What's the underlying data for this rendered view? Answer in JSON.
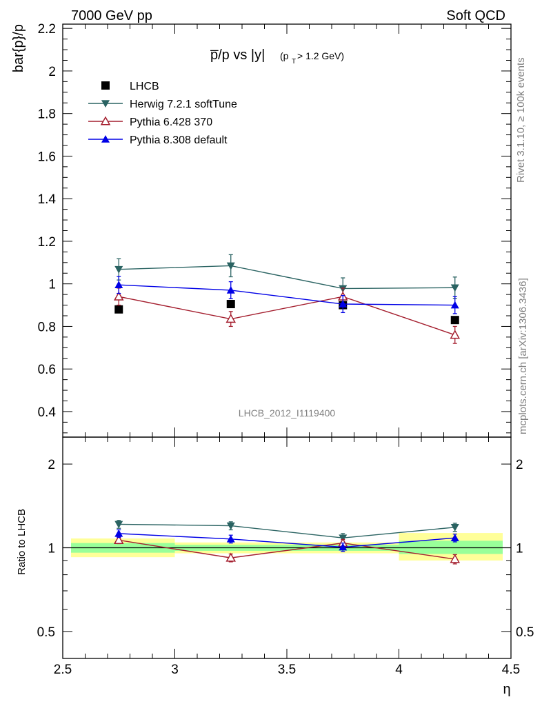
{
  "header": {
    "left": "7000 GeV pp",
    "right": "Soft QCD"
  },
  "side": {
    "rivet": "Rivet 3.1.10, ≥ 100k events",
    "mcplots": "mcplots.cern.ch [arXiv:1306.3436]"
  },
  "chart_data": [
    {
      "type": "scatter",
      "title_main": "p̅/p vs |y|",
      "title_sub": "(p",
      "title_sub_t": "T",
      "title_sub_end": " > 1.2 GeV)",
      "ylabel": "bar{p}/p",
      "xlabel": "η",
      "watermark": "LHCB_2012_I1119400",
      "xlim": [
        2.5,
        4.5
      ],
      "ylim": [
        0.28,
        2.22
      ],
      "y_ticks": [
        0.4,
        0.6,
        0.8,
        1,
        1.2,
        1.4,
        1.6,
        1.8,
        2,
        2.2
      ],
      "y_tick_labels": [
        "0.4",
        "0.6",
        "0.8",
        "1",
        "1.2",
        "1.4",
        "1.6",
        "1.8",
        "2",
        "2.2"
      ],
      "legend_position": "top-left",
      "series": [
        {
          "name": "LHCB",
          "color": "#000000",
          "marker": "square",
          "x": [
            2.75,
            3.25,
            3.75,
            4.25
          ],
          "y": [
            0.88,
            0.905,
            0.9,
            0.83
          ],
          "err": [
            0.01,
            0.01,
            0.01,
            0.01
          ],
          "line": false
        },
        {
          "name": "Herwig 7.2.1 softTune",
          "color": "#2a6362",
          "marker": "triangle-down",
          "x": [
            2.75,
            3.25,
            3.75,
            4.25
          ],
          "y": [
            1.068,
            1.085,
            0.978,
            0.982
          ],
          "err": [
            0.05,
            0.052,
            0.05,
            0.05
          ],
          "line": true
        },
        {
          "name": "Pythia 6.428 370",
          "color": "#a41e2e",
          "marker": "triangle-up-open",
          "x": [
            2.75,
            3.25,
            3.75,
            4.25
          ],
          "y": [
            0.94,
            0.835,
            0.94,
            0.76
          ],
          "err": [
            0.04,
            0.035,
            0.04,
            0.04
          ],
          "line": true
        },
        {
          "name": "Pythia 8.308 default",
          "color": "#0000e6",
          "marker": "triangle-up",
          "x": [
            2.75,
            3.25,
            3.75,
            4.25
          ],
          "y": [
            0.995,
            0.97,
            0.905,
            0.9
          ],
          "err": [
            0.04,
            0.04,
            0.04,
            0.04
          ],
          "line": true
        }
      ]
    },
    {
      "type": "scatter",
      "ylabel": "Ratio to LHCB",
      "ylog": true,
      "ylim": [
        0.4,
        2.5
      ],
      "x_ticks": [
        2.5,
        3,
        3.5,
        4,
        4.5
      ],
      "x_tick_labels": [
        "2.5",
        "3",
        "3.5",
        "4",
        "4.5"
      ],
      "y_ticks": [
        0.5,
        1,
        2
      ],
      "y_tick_labels": [
        "0.5",
        "1",
        "2"
      ],
      "bands": [
        {
          "x": [
            2.5,
            3.0
          ],
          "yellow": [
            0.925,
            1.08
          ],
          "green": [
            0.96,
            1.04
          ]
        },
        {
          "x": [
            3.0,
            3.5
          ],
          "yellow": [
            0.955,
            1.045
          ],
          "green": [
            0.975,
            1.025
          ]
        },
        {
          "x": [
            3.5,
            4.0
          ],
          "yellow": [
            0.955,
            1.045
          ],
          "green": [
            0.975,
            1.025
          ]
        },
        {
          "x": [
            4.0,
            4.5
          ],
          "yellow": [
            0.9,
            1.13
          ],
          "green": [
            0.95,
            1.06
          ]
        }
      ],
      "series": [
        {
          "name": "Herwig 7.2.1 softTune",
          "color": "#2a6362",
          "marker": "triangle-down",
          "x": [
            2.75,
            3.25,
            3.75,
            4.25
          ],
          "y": [
            1.215,
            1.2,
            1.085,
            1.185
          ],
          "err": [
            0.04,
            0.04,
            0.04,
            0.04
          ]
        },
        {
          "name": "Pythia 6.428 370",
          "color": "#a41e2e",
          "marker": "triangle-up-open",
          "x": [
            2.75,
            3.25,
            3.75,
            4.25
          ],
          "y": [
            1.065,
            0.92,
            1.04,
            0.91
          ],
          "err": [
            0.03,
            0.03,
            0.03,
            0.035
          ]
        },
        {
          "name": "Pythia 8.308 default",
          "color": "#0000e6",
          "marker": "triangle-up",
          "x": [
            2.75,
            3.25,
            3.75,
            4.25
          ],
          "y": [
            1.125,
            1.075,
            1.005,
            1.085
          ],
          "err": [
            0.035,
            0.035,
            0.035,
            0.035
          ]
        }
      ]
    }
  ]
}
